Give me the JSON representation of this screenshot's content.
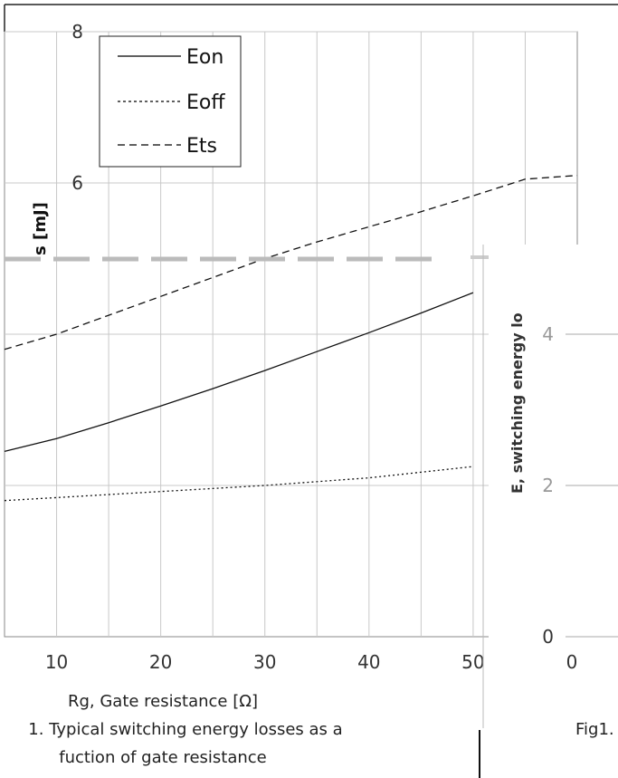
{
  "chart_data": {
    "type": "line",
    "xlabel": "Rg, Gate resistance [Ω]",
    "ylabel": "s [mJ]",
    "xlim": [
      5,
      60
    ],
    "ylim": [
      0,
      8
    ],
    "x_ticks": [
      "10",
      "20",
      "30",
      "40",
      "50"
    ],
    "y_ticks": [
      "6",
      "8"
    ],
    "grid": true,
    "legend_position": "top-left",
    "caption_lines": [
      "1. Typical switching energy losses as a",
      "fuction of gate resistance"
    ],
    "series": [
      {
        "name": "Eon",
        "style": "solid",
        "x": [
          5,
          10,
          15,
          20,
          25,
          30,
          35,
          40,
          45,
          50
        ],
        "y": [
          2.45,
          2.62,
          2.83,
          3.05,
          3.28,
          3.52,
          3.77,
          4.02,
          4.28,
          4.55
        ]
      },
      {
        "name": "Eoff",
        "style": "dotted",
        "x": [
          5,
          10,
          20,
          30,
          40,
          50
        ],
        "y": [
          1.8,
          1.84,
          1.92,
          2.0,
          2.1,
          2.25
        ]
      },
      {
        "name": "Ets",
        "style": "dashed",
        "x": [
          5,
          10,
          15,
          20,
          25,
          30,
          35,
          40,
          45,
          50,
          55,
          60
        ],
        "y": [
          3.8,
          4.0,
          4.25,
          4.5,
          4.75,
          5.0,
          5.22,
          5.42,
          5.62,
          5.83,
          6.05,
          6.1
        ]
      }
    ]
  },
  "right_panel": {
    "ylabel_fragment": "E, switching energy lo",
    "y_ticks": [
      "4",
      "2",
      "0"
    ],
    "x_ticks": [
      "0"
    ],
    "caption_fragment": "Fig1."
  }
}
